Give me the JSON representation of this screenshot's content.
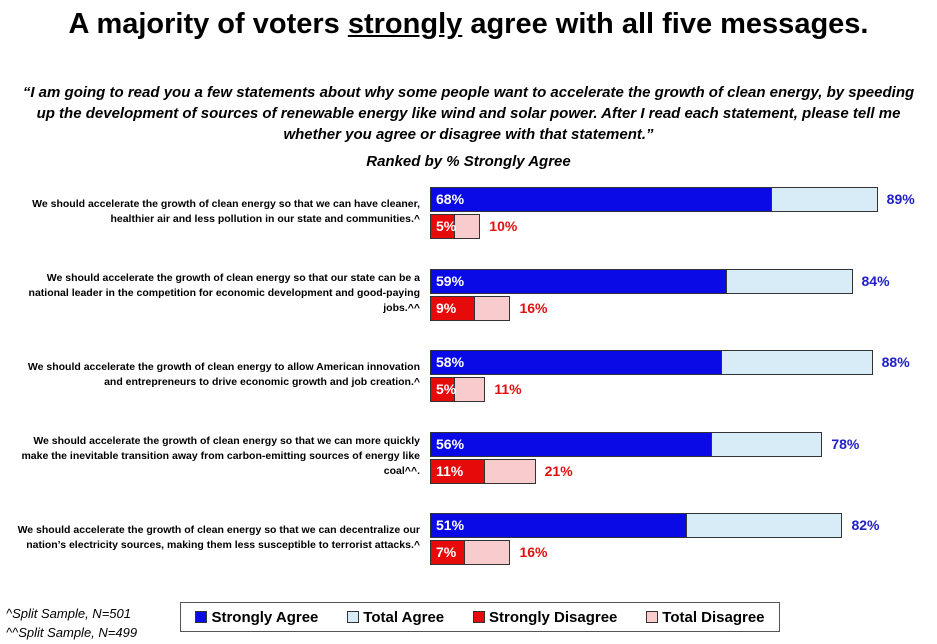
{
  "chart_data": {
    "type": "bar",
    "title": [
      "A majority of voters",
      "strongly",
      "agree with all five messages."
    ],
    "subtitle": "“I am going to read you a few statements about why some people want to accelerate the growth of clean energy, by speeding up the development of sources of renewable energy like wind and solar power. After I read each statement, please tell me whether you agree or disagree with that statement.”",
    "ranking_note": "Ranked by % Strongly Agree",
    "categories": [
      "We should accelerate the growth of clean energy so that we can have cleaner, healthier air and less pollution in our state and communities.^",
      "We should accelerate the growth of clean energy so that our state can be a national leader in the competition for economic development and good-paying jobs.^^",
      "We should accelerate the growth of clean energy to allow American innovation and entrepreneurs to drive economic growth and job creation.^",
      "We should accelerate the growth of clean energy so that we can more quickly make the inevitable transition away from carbon-emitting sources of energy like coal^^.",
      "We should accelerate the growth of clean energy so that we can decentralize our nation’s electricity sources, making them less susceptible to terrorist attacks.^"
    ],
    "series": [
      {
        "name": "Strongly Agree",
        "color": "#0a0ae6",
        "values": [
          68,
          59,
          58,
          56,
          51
        ],
        "value_labels": [
          "68%",
          "59%",
          "58%",
          "56%",
          "51%"
        ]
      },
      {
        "name": "Total Agree",
        "color": "#d8ecf8",
        "values": [
          89,
          84,
          88,
          78,
          82
        ],
        "value_labels": [
          "89%",
          "84%",
          "88%",
          "78%",
          "82%"
        ]
      },
      {
        "name": "Strongly Disagree",
        "color": "#e60a0a",
        "values": [
          5,
          9,
          5,
          11,
          7
        ],
        "value_labels": [
          "5%",
          "9%",
          "5%",
          "11%",
          "7%"
        ]
      },
      {
        "name": "Total Disagree",
        "color": "#f8cccc",
        "values": [
          10,
          16,
          11,
          21,
          16
        ],
        "value_labels": [
          "10%",
          "16%",
          "11%",
          "21%",
          "16%"
        ]
      }
    ],
    "footnotes": [
      "^Split Sample, N=501",
      "^^Split Sample, N=499"
    ]
  }
}
